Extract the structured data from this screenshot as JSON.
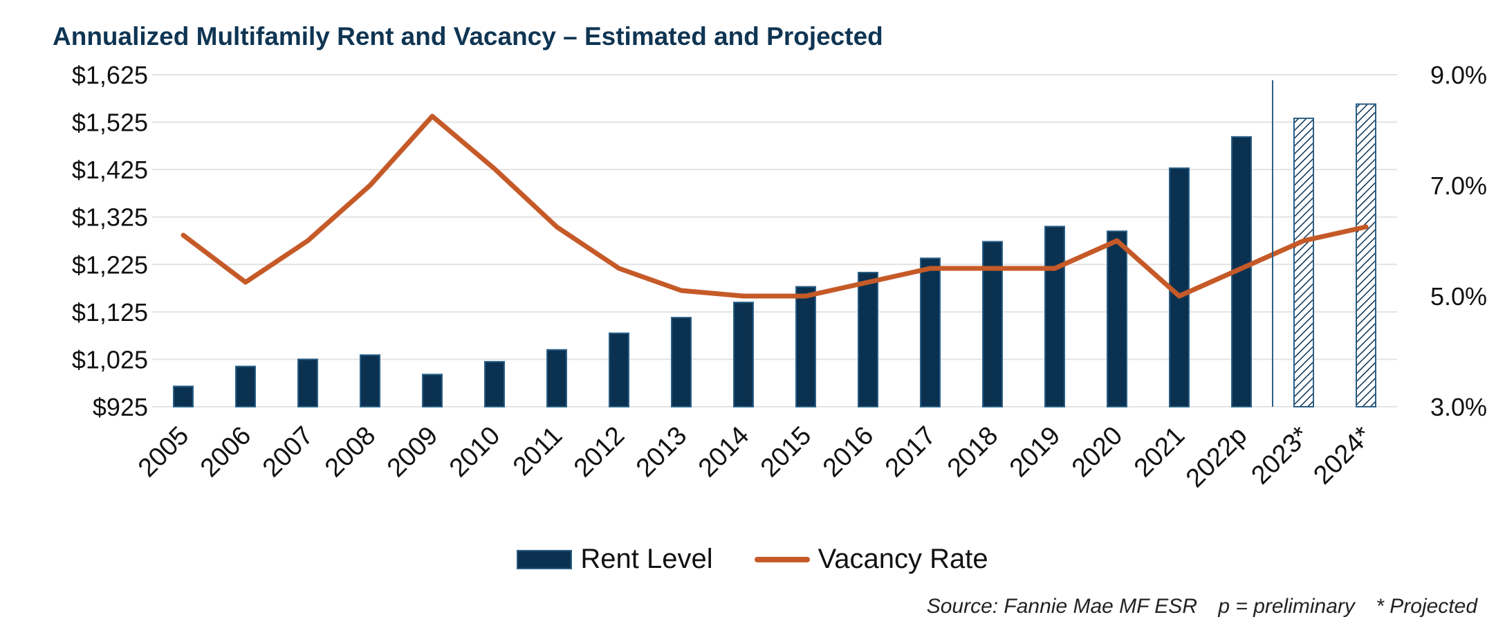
{
  "chart_data": {
    "type": "bar",
    "title": "Annualized Multifamily Rent and Vacancy – Estimated and Projected",
    "categories": [
      "2005",
      "2006",
      "2007",
      "2008",
      "2009",
      "2010",
      "2011",
      "2012",
      "2013",
      "2014",
      "2015",
      "2016",
      "2017",
      "2018",
      "2019",
      "2020",
      "2021",
      "2022p",
      "2023*",
      "2024*"
    ],
    "series": [
      {
        "name": "Rent Level",
        "type": "bar",
        "axis": "left",
        "values": [
          968,
          1010,
          1025,
          1034,
          993,
          1020,
          1045,
          1080,
          1113,
          1145,
          1178,
          1208,
          1238,
          1273,
          1305,
          1295,
          1428,
          1494,
          1533,
          1563
        ],
        "projected_from_index": 18
      },
      {
        "name": "Vacancy Rate",
        "type": "line",
        "axis": "right",
        "values": [
          6.1,
          5.25,
          6.0,
          7.0,
          8.25,
          7.3,
          6.25,
          5.5,
          5.1,
          5.0,
          5.0,
          5.25,
          5.5,
          5.5,
          5.5,
          6.0,
          5.0,
          5.5,
          6.0,
          6.25
        ]
      }
    ],
    "left_axis": {
      "ylim": [
        925,
        1625
      ],
      "ticks": [
        "$925",
        "$1,025",
        "$1,125",
        "$1,225",
        "$1,325",
        "$1,425",
        "$1,525",
        "$1,625"
      ],
      "tick_values": [
        925,
        1025,
        1125,
        1225,
        1325,
        1425,
        1525,
        1625
      ]
    },
    "right_axis": {
      "ylim": [
        3.0,
        9.0
      ],
      "ticks": [
        "3.0%",
        "5.0%",
        "7.0%",
        "9.0%"
      ],
      "tick_values": [
        3.0,
        5.0,
        7.0,
        9.0
      ]
    },
    "legend": [
      "Rent Level",
      "Vacancy Rate"
    ],
    "grid": true,
    "colors": {
      "bar": "#0b3150",
      "bar_edge": "#2a5f86",
      "line": "#c55a28",
      "grid": "#e3e3e3",
      "divider": "#2a5f86",
      "title": "#0f3553"
    }
  },
  "footer": {
    "source": "Source: Fannie Mae MF ESR",
    "preliminary": "p = preliminary",
    "projected": "* Projected"
  }
}
